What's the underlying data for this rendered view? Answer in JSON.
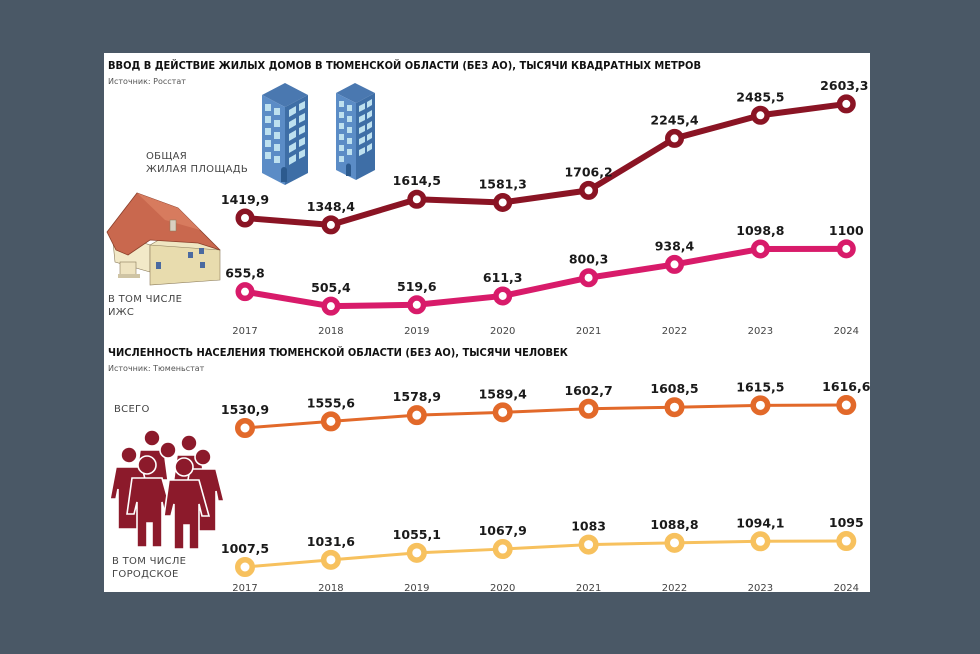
{
  "charts": {
    "housing": {
      "title": "ВВОД В ДЕЙСТВИЕ ЖИЛЫХ ДОМОВ В ТЮМЕНСКОЙ ОБЛАСТИ (БЕЗ АО), ТЫСЯЧИ КВАДРАТНЫХ МЕТРОВ",
      "source": "Источник: Росстат",
      "label_total_line1": "ОБЩАЯ",
      "label_total_line2": "ЖИЛАЯ ПЛОЩАДЬ",
      "label_sub_line1": "В ТОМ ЧИСЛЕ",
      "label_sub_line2": "ИЖС"
    },
    "population": {
      "title": "ЧИСЛЕННОСТЬ НАСЕЛЕНИЯ ТЮМЕНСКОЙ ОБЛАСТИ (БЕЗ АО), ТЫСЯЧИ ЧЕЛОВЕК",
      "source": "Источник: Тюменьстат",
      "label_total": "ВСЕГО",
      "label_sub_line1": "В ТОМ ЧИСЛЕ",
      "label_sub_line2": "ГОРОДСКОЕ"
    }
  },
  "icons": {
    "housing_buildings": "apartment-buildings-icon",
    "housing_house": "private-house-icon",
    "population_people": "people-group-icon"
  },
  "chart_data": [
    {
      "type": "line",
      "title": "ВВОД В ДЕЙСТВИЕ ЖИЛЫХ ДОМОВ В ТЮМЕНСКОЙ ОБЛАСТИ (БЕЗ АО), ТЫСЯЧИ КВАДРАТНЫХ МЕТРОВ",
      "subtitle": "Источник: Росстат",
      "xlabel": "",
      "ylabel": "тыс. кв. м",
      "x": [
        "2017",
        "2018",
        "2019",
        "2020",
        "2021",
        "2022",
        "2023",
        "2024"
      ],
      "series": [
        {
          "name": "ОБЩАЯ ЖИЛАЯ ПЛОЩАДЬ",
          "color": "#8a1424",
          "values": [
            1419.9,
            1348.4,
            1614.5,
            1581.3,
            1706.2,
            2245.4,
            2485.5,
            2603.3
          ],
          "labels": [
            "1419,9",
            "1348,4",
            "1614,5",
            "1581,3",
            "1706,2",
            "2245,4",
            "2485,5",
            "2603,3"
          ]
        },
        {
          "name": "В ТОМ ЧИСЛЕ ИЖС",
          "color": "#d81b6a",
          "values": [
            655.8,
            505.4,
            519.6,
            611.3,
            800.3,
            938.4,
            1098.8,
            1100
          ],
          "labels": [
            "655,8",
            "505,4",
            "519,6",
            "611,3",
            "800,3",
            "938,4",
            "1098,8",
            "1100"
          ]
        }
      ],
      "grid": false,
      "legend": "inline-left"
    },
    {
      "type": "line",
      "title": "ЧИСЛЕННОСТЬ НАСЕЛЕНИЯ ТЮМЕНСКОЙ ОБЛАСТИ (БЕЗ АО), ТЫСЯЧИ ЧЕЛОВЕК",
      "subtitle": "Источник: Тюменьстат",
      "xlabel": "",
      "ylabel": "тыс. человек",
      "x": [
        "2017",
        "2018",
        "2019",
        "2020",
        "2021",
        "2022",
        "2023",
        "2024"
      ],
      "series": [
        {
          "name": "ВСЕГО",
          "color": "#e2692a",
          "values": [
            1530.9,
            1555.6,
            1578.9,
            1589.4,
            1602.7,
            1608.5,
            1615.5,
            1616.6
          ],
          "labels": [
            "1530,9",
            "1555,6",
            "1578,9",
            "1589,4",
            "1602,7",
            "1608,5",
            "1615,5",
            "1616,6"
          ]
        },
        {
          "name": "В ТОМ ЧИСЛЕ ГОРОДСКОЕ",
          "color": "#f7c15e",
          "values": [
            1007.5,
            1031.6,
            1055.1,
            1067.9,
            1083,
            1088.8,
            1094.1,
            1095
          ],
          "labels": [
            "1007,5",
            "1031,6",
            "1055,1",
            "1067,9",
            "1083",
            "1088,8",
            "1094,1",
            "1095"
          ]
        }
      ],
      "grid": false,
      "legend": "inline-left"
    }
  ]
}
